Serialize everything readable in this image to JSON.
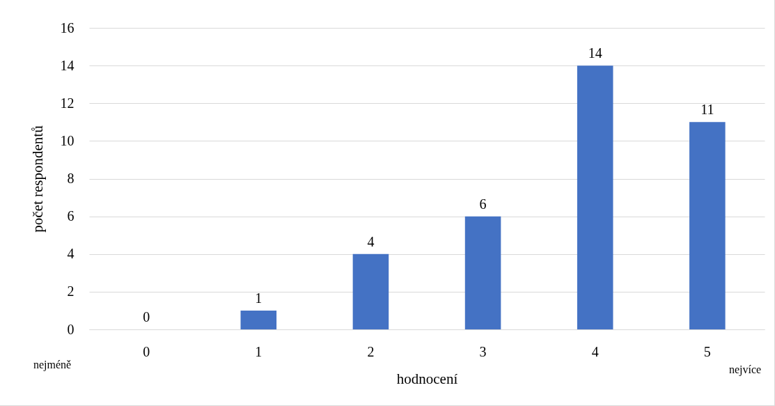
{
  "chart_data": {
    "type": "bar",
    "xlabel": "hodnocení",
    "ylabel": "počet respondentů",
    "categories": [
      "0",
      "1",
      "2",
      "3",
      "4",
      "5"
    ],
    "values": [
      0,
      1,
      4,
      6,
      14,
      11
    ],
    "color": "#4472c4",
    "ylim": [
      0,
      16
    ],
    "yticks": [
      0,
      2,
      4,
      6,
      8,
      10,
      12,
      14,
      16
    ],
    "grid": "y",
    "data_labels": true,
    "annotations": [
      "nejméně",
      "nejvíce"
    ]
  }
}
